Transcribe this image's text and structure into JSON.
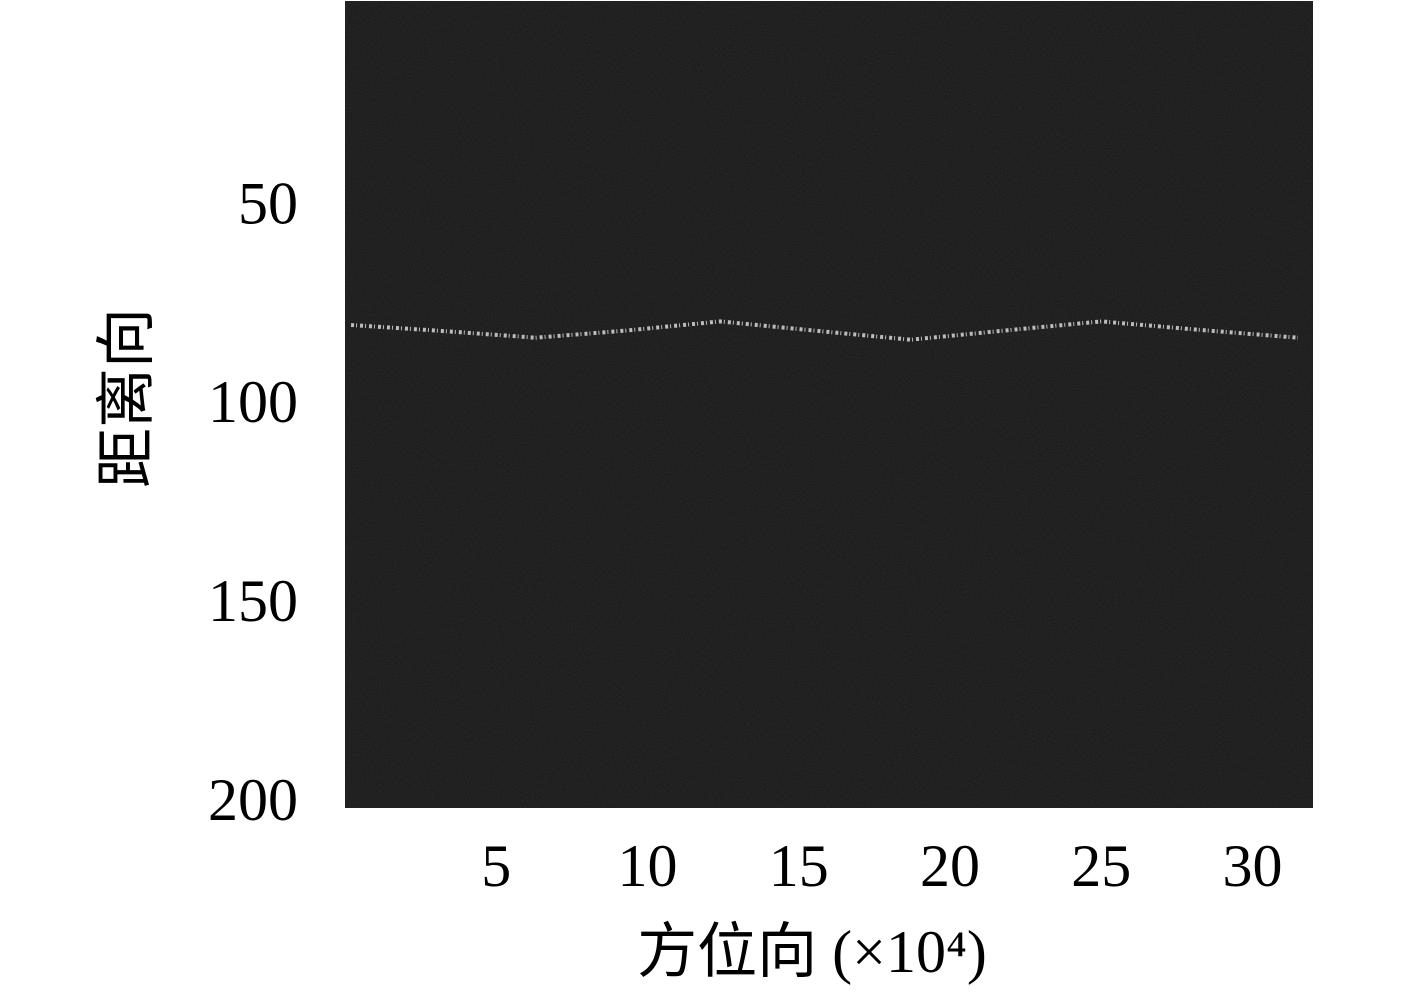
{
  "chart_data": {
    "type": "line",
    "xlabel": "方位向 (×10⁴)",
    "ylabel": "距离向",
    "xlim": [
      0,
      32
    ],
    "ylim": [
      -2.5,
      200.5
    ],
    "y_inverted": true,
    "xticks": [
      5,
      10,
      15,
      20,
      25,
      30
    ],
    "yticks": [
      50,
      100,
      150,
      200
    ],
    "background": "#141414",
    "series": [
      {
        "color": "#d8d8d8",
        "x": [
          0.2,
          3.2,
          6.3,
          9.3,
          12.4,
          15.5,
          18.7,
          21.8,
          25,
          28.2,
          31.5
        ],
        "values": [
          79,
          80.5,
          82.2,
          80.4,
          78.1,
          80.4,
          82.7,
          80.4,
          78.1,
          80.2,
          82.2
        ]
      }
    ]
  }
}
